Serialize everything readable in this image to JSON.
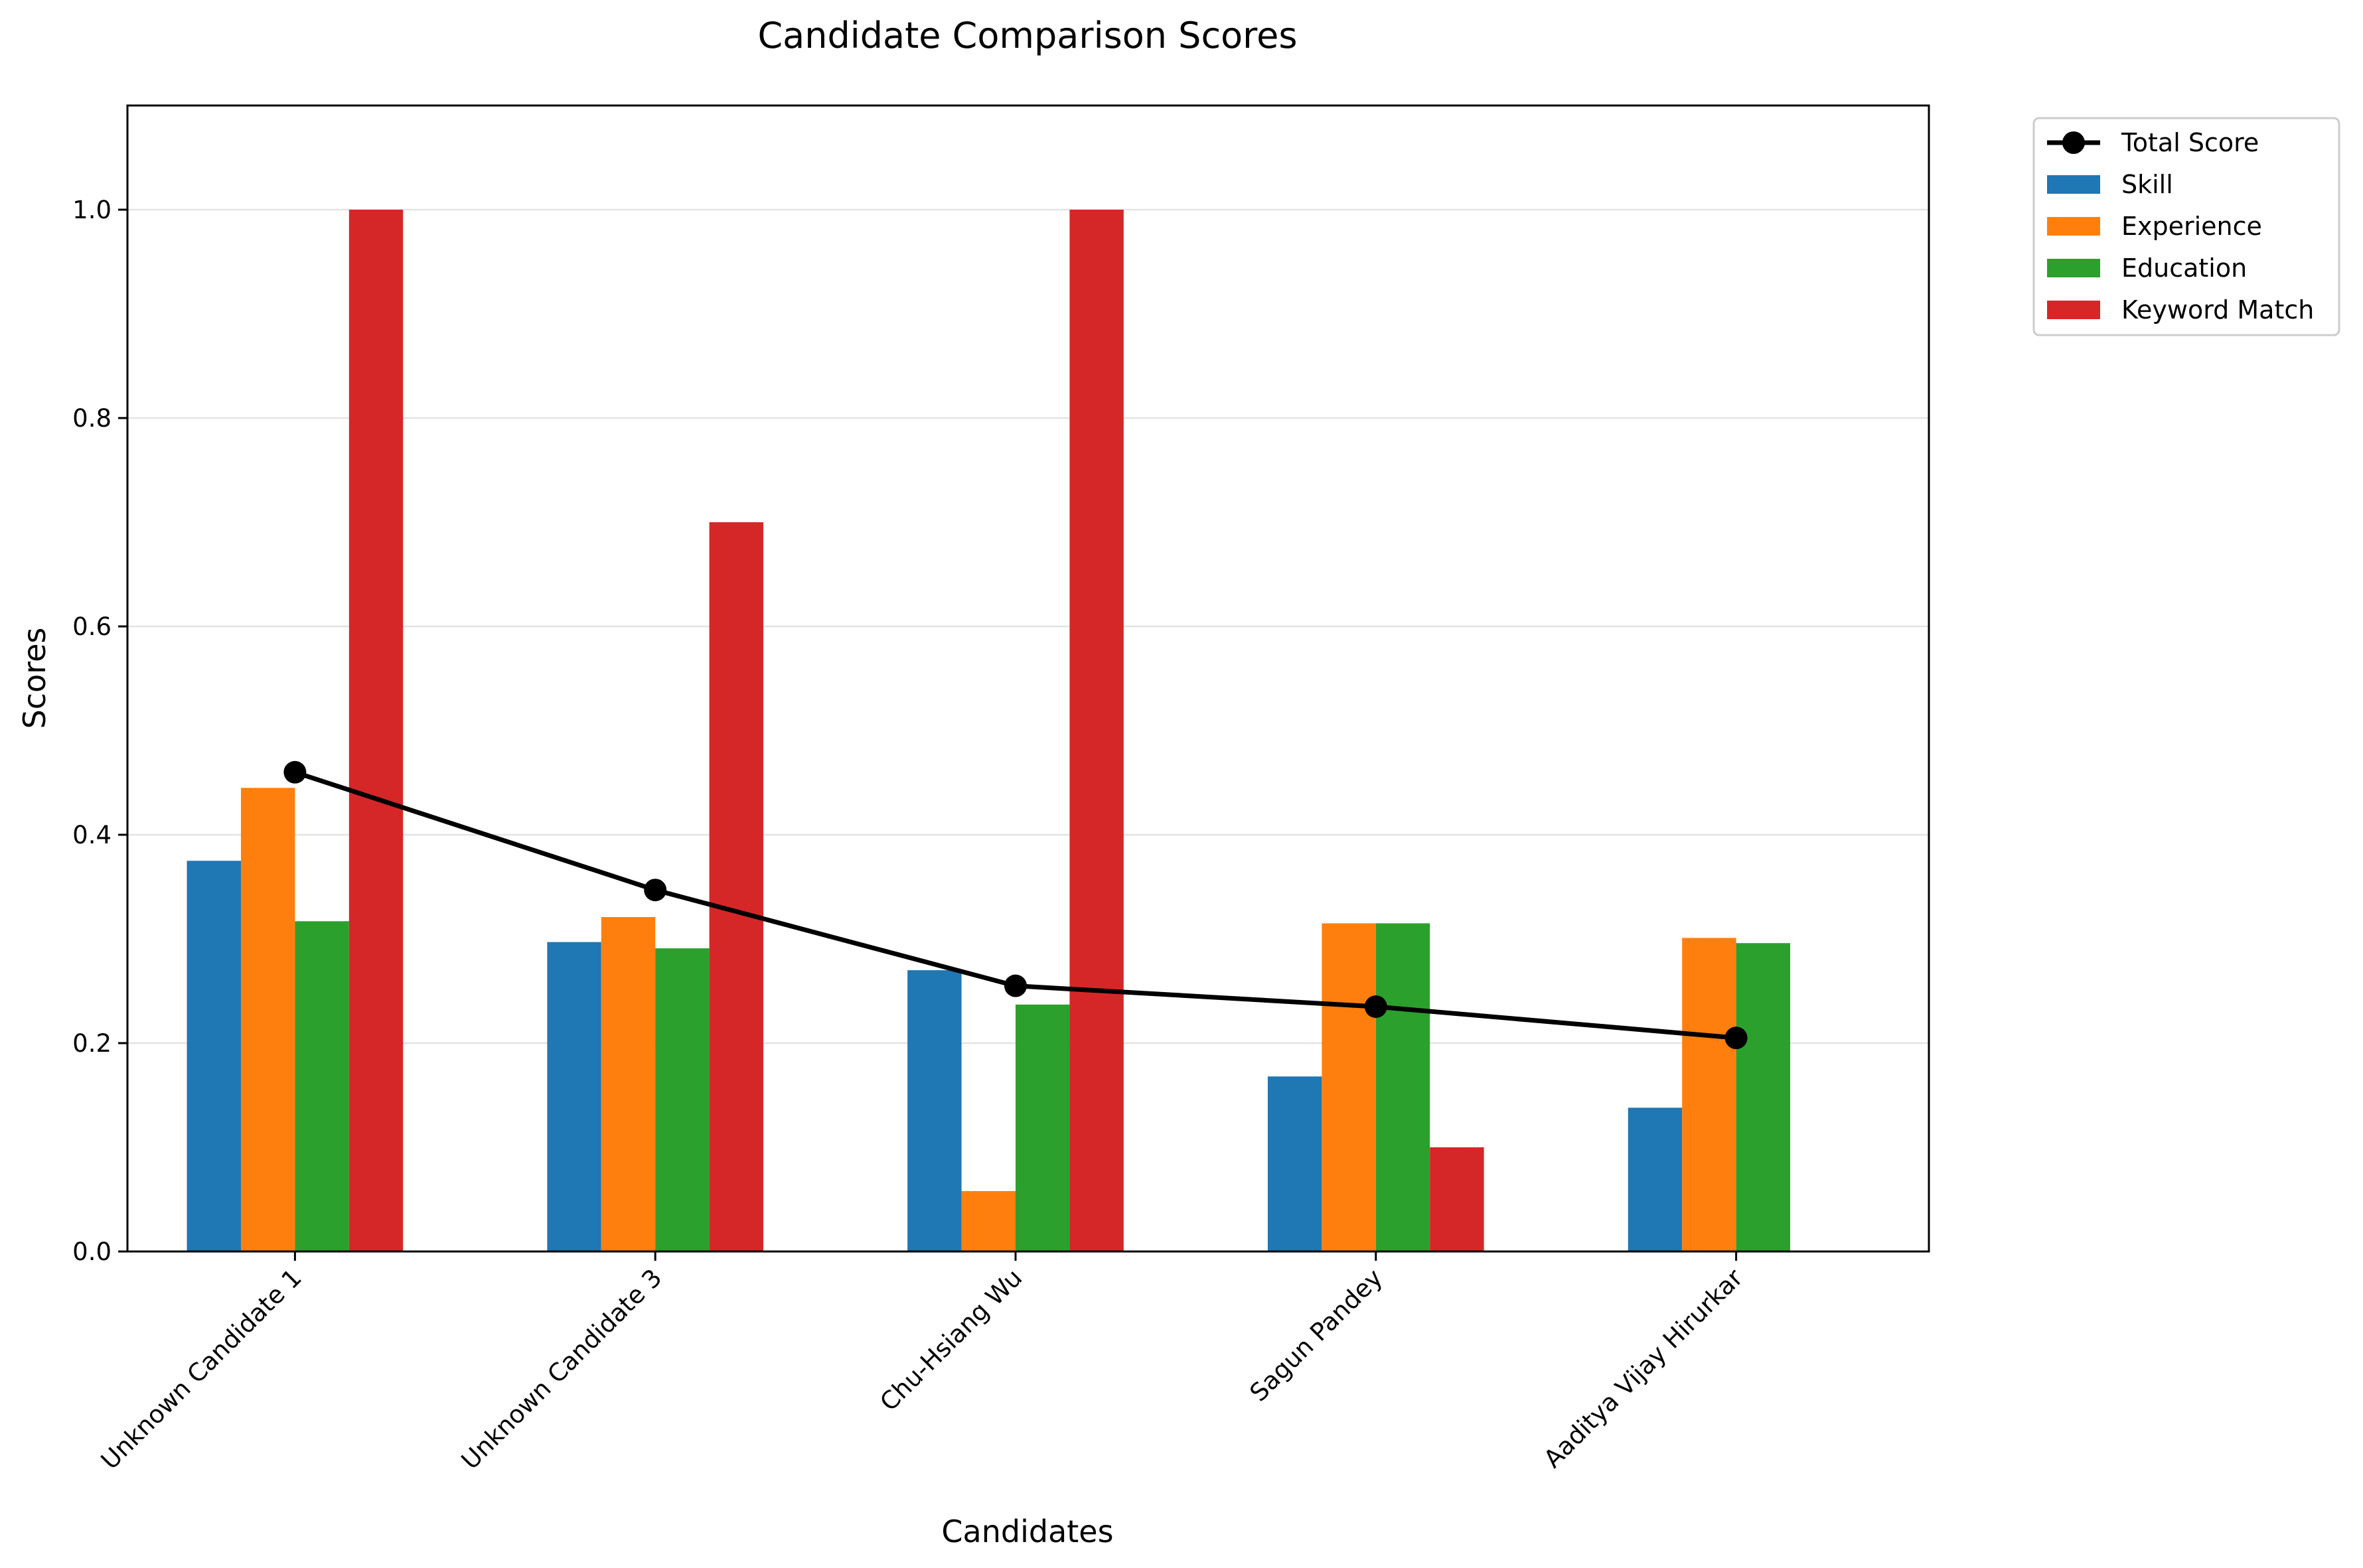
{
  "chart_data": {
    "type": "bar",
    "title": "Candidate Comparison Scores",
    "xlabel": "Candidates",
    "ylabel": "Scores",
    "ylim": [
      0,
      1.1
    ],
    "yticks": [
      "0.0",
      "0.2",
      "0.4",
      "0.6",
      "0.8",
      "1.0"
    ],
    "grid": "horizontal",
    "legend_placement": "outside-top-right",
    "categories": [
      "Unknown Candidate 1",
      "Unknown Candidate 3",
      "Chu-Hsiang Wu",
      "Sagun Pandey",
      "Aaditya Vijay Hirurkar"
    ],
    "series": [
      {
        "name": "Skill",
        "color": "#1f77b4",
        "values": [
          0.375,
          0.297,
          0.27,
          0.168,
          0.138
        ]
      },
      {
        "name": "Experience",
        "color": "#ff7f0e",
        "values": [
          0.445,
          0.321,
          0.058,
          0.315,
          0.301
        ]
      },
      {
        "name": "Education",
        "color": "#2ca02c",
        "values": [
          0.317,
          0.291,
          0.237,
          0.315,
          0.296
        ]
      },
      {
        "name": "Keyword Match",
        "color": "#d62728",
        "values": [
          1.0,
          0.7,
          1.0,
          0.1,
          0.0
        ]
      }
    ],
    "line": {
      "name": "Total Score",
      "color": "#000000",
      "values": [
        0.46,
        0.347,
        0.255,
        0.235,
        0.205
      ]
    }
  }
}
